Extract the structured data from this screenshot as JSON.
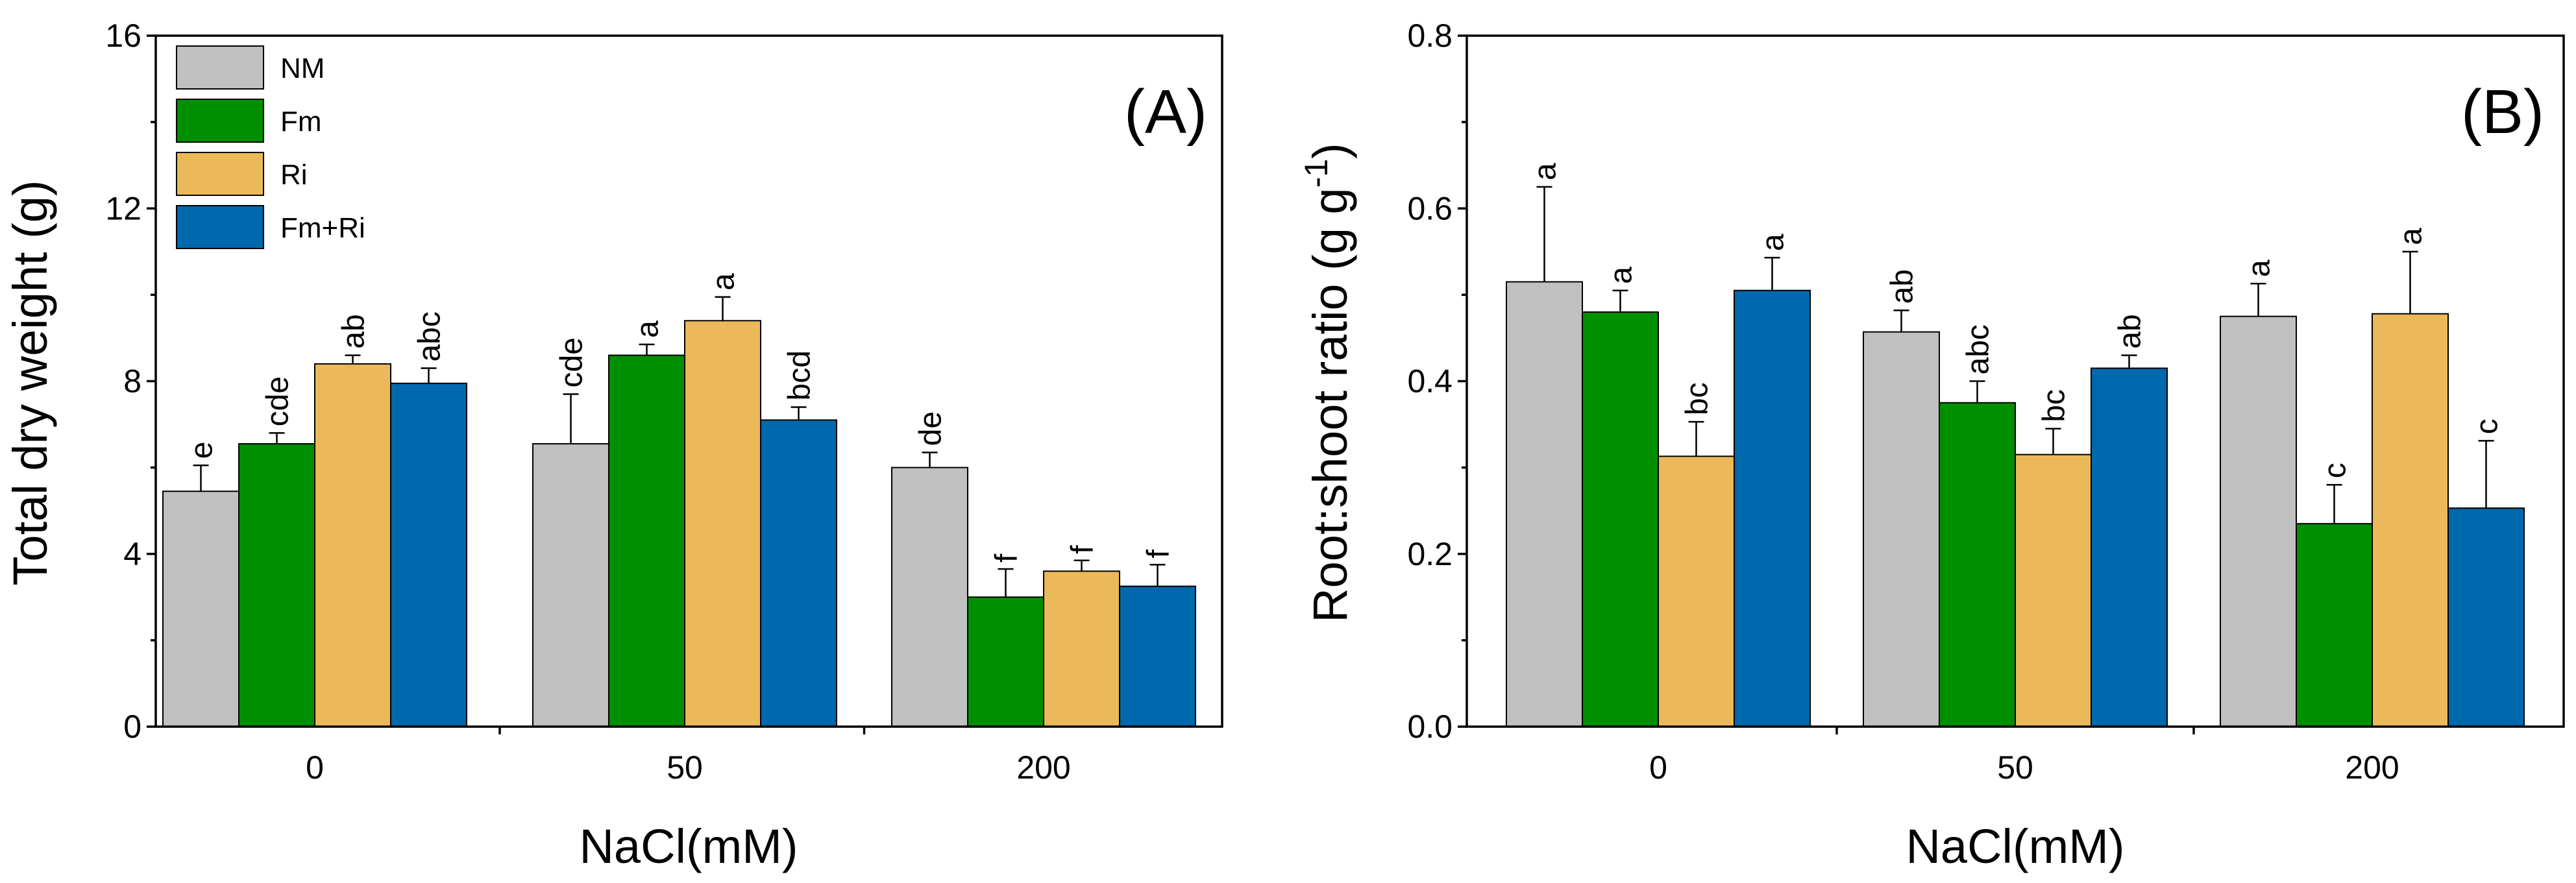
{
  "colors": {
    "NM": "#c0c0c0",
    "Fm": "#008f00",
    "Ri": "#ebb95a",
    "Fm+Ri": "#0068ad"
  },
  "chart_data": [
    {
      "type": "bar",
      "panel_label": "(A)",
      "title": "",
      "xlabel": "NaCl(mM)",
      "ylabel": "Total dry weight (g)",
      "ylim": [
        0,
        16
      ],
      "yticks": [
        "0",
        "4",
        "8",
        "12",
        "16"
      ],
      "categories": [
        "0",
        "50",
        "200"
      ],
      "legend": {
        "position": "top-left",
        "entries": [
          "NM",
          "Fm",
          "Ri",
          "Fm+Ri"
        ]
      },
      "series": [
        {
          "name": "NM",
          "values": [
            5.45,
            6.55,
            6.0
          ],
          "errors": [
            0.6,
            1.15,
            0.35
          ],
          "labels": [
            "e",
            "cde",
            "de"
          ]
        },
        {
          "name": "Fm",
          "values": [
            6.55,
            8.6,
            3.0
          ],
          "errors": [
            0.25,
            0.25,
            0.65
          ],
          "labels": [
            "cde",
            "a",
            "f"
          ]
        },
        {
          "name": "Ri",
          "values": [
            8.4,
            9.4,
            3.6
          ],
          "errors": [
            0.2,
            0.55,
            0.25
          ],
          "labels": [
            "ab",
            "a",
            "f"
          ]
        },
        {
          "name": "Fm+Ri",
          "values": [
            7.95,
            7.1,
            3.25
          ],
          "errors": [
            0.35,
            0.3,
            0.5
          ],
          "labels": [
            "abc",
            "bcd",
            "f"
          ]
        }
      ]
    },
    {
      "type": "bar",
      "panel_label": "(B)",
      "title": "",
      "xlabel": "NaCl(mM)",
      "ylabel": "Root:shoot ratio (g g",
      "ylabel_sup": "-1",
      "ylabel_end": ")",
      "ylim": [
        0,
        0.8
      ],
      "yticks": [
        "0.0",
        "0.2",
        "0.4",
        "0.6",
        "0.8"
      ],
      "categories": [
        "0",
        "50",
        "200"
      ],
      "legend": null,
      "series": [
        {
          "name": "NM",
          "values": [
            0.515,
            0.457,
            0.475
          ],
          "errors": [
            0.11,
            0.025,
            0.038
          ],
          "labels": [
            "a",
            "ab",
            "a"
          ]
        },
        {
          "name": "Fm",
          "values": [
            0.48,
            0.375,
            0.235
          ],
          "errors": [
            0.025,
            0.025,
            0.045
          ],
          "labels": [
            "a",
            "abc",
            "c"
          ]
        },
        {
          "name": "Ri",
          "values": [
            0.313,
            0.315,
            0.478
          ],
          "errors": [
            0.04,
            0.03,
            0.072
          ],
          "labels": [
            "bc",
            "bc",
            "a"
          ]
        },
        {
          "name": "Fm+Ri",
          "values": [
            0.505,
            0.415,
            0.253
          ],
          "errors": [
            0.038,
            0.015,
            0.078
          ],
          "labels": [
            "a",
            "ab",
            "c"
          ]
        }
      ]
    }
  ]
}
